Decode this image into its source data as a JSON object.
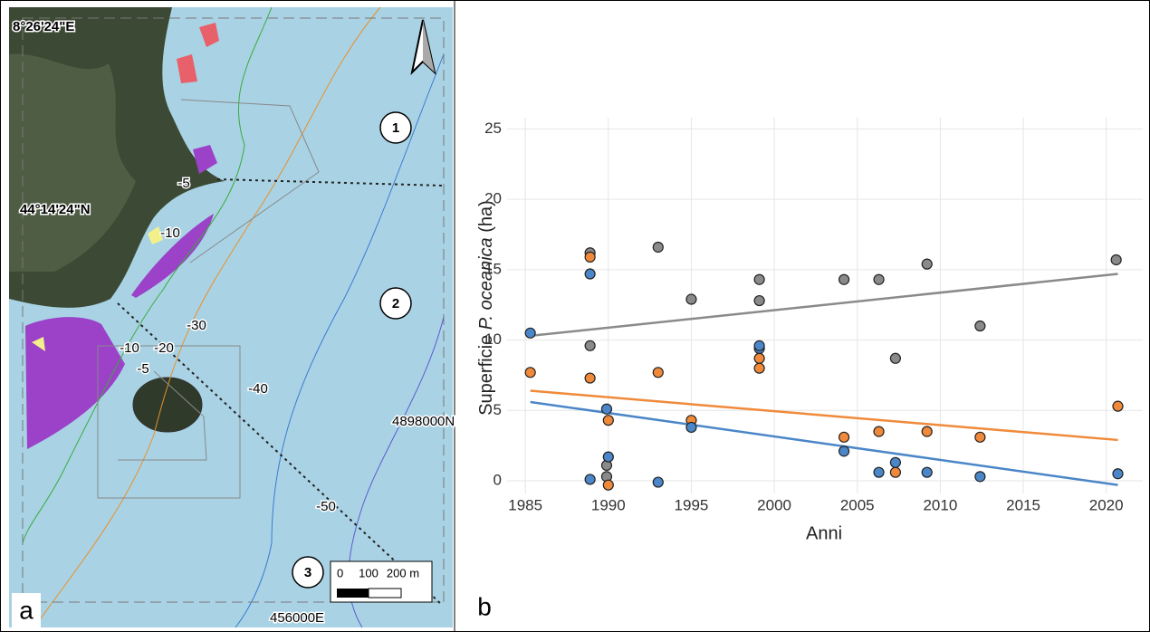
{
  "map": {
    "panel_label": "a",
    "lon_label": "8°26'24\"E",
    "lat_label": "44°14'24\"N",
    "northing_label": "4898000N",
    "easting_label": "456000E",
    "depth_labels": [
      "-5",
      "-10",
      "-30",
      "-10",
      "-20",
      "-5",
      "-40",
      "-50"
    ],
    "zones": [
      "1",
      "2",
      "3"
    ],
    "scale_labels": [
      "0",
      "100",
      "200 m"
    ]
  },
  "chart_data": {
    "type": "scatter",
    "panel_label": "b",
    "x_label": "Anni",
    "y_label": [
      "Superficie ",
      "P. oceanica",
      " (ha)"
    ],
    "xlim": [
      1983.9,
      2022.2
    ],
    "xticks": [
      1985,
      1990,
      1995,
      2000,
      2005,
      2010,
      2015,
      2020
    ],
    "ylim": [
      -0.9,
      25.8
    ],
    "yticks": [
      0,
      5,
      10,
      15,
      20,
      25
    ],
    "grid": true,
    "series": [
      {
        "color": "#8a8a8a",
        "x": [
          1988.9,
          1988.9,
          1989.9,
          1989.9,
          1993.0,
          1995.0,
          1999.1,
          1999.1,
          2004.2,
          2006.3,
          2007.3,
          2009.2,
          2012.4,
          2020.6
        ],
        "values": [
          16.2,
          9.6,
          1.1,
          0.3,
          16.6,
          12.9,
          14.3,
          12.8,
          14.3,
          14.3,
          8.7,
          15.4,
          11.0,
          15.7
        ],
        "trend_x": [
          1985.3,
          2020.7
        ],
        "trend": [
          10.3,
          14.7
        ]
      },
      {
        "color": "#f08a3a",
        "x": [
          1985.3,
          1988.9,
          1988.9,
          1990.0,
          1990.0,
          1993.0,
          1995.0,
          1999.1,
          1999.1,
          2004.2,
          2006.3,
          2007.3,
          2009.2,
          2012.4,
          2020.7
        ],
        "values": [
          7.7,
          15.9,
          7.3,
          4.3,
          -0.3,
          7.7,
          4.3,
          8.7,
          8.0,
          3.1,
          3.5,
          0.6,
          3.5,
          3.1,
          5.3
        ],
        "trend_x": [
          1985.3,
          2020.7
        ],
        "trend": [
          6.4,
          2.9
        ]
      },
      {
        "color": "#4a86c8",
        "x": [
          1985.3,
          1988.9,
          1988.9,
          1989.9,
          1990.0,
          1993.0,
          1995.0,
          1999.1,
          1999.1,
          2004.2,
          2006.3,
          2007.3,
          2009.2,
          2012.4,
          2020.7
        ],
        "values": [
          10.5,
          14.7,
          0.1,
          5.1,
          1.7,
          -0.1,
          3.8,
          9.4,
          9.6,
          2.1,
          0.6,
          1.3,
          0.6,
          0.3,
          0.5
        ],
        "trend_x": [
          1985.3,
          2020.7
        ],
        "trend": [
          5.6,
          -0.3
        ]
      }
    ]
  }
}
